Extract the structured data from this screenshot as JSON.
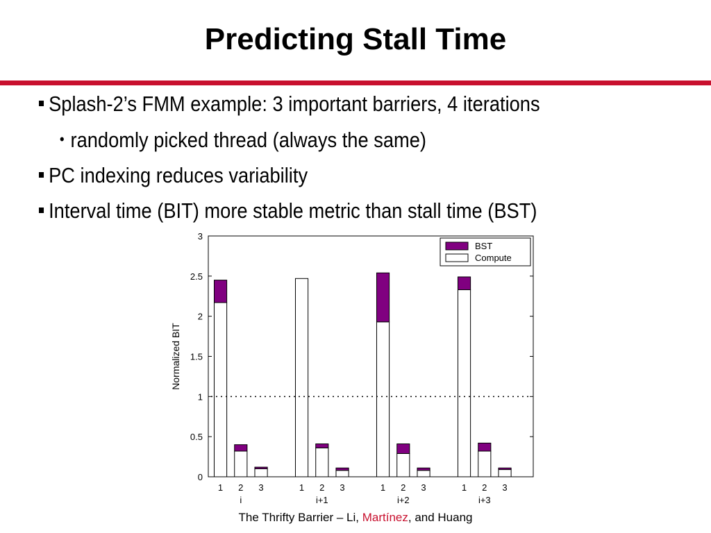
{
  "slide": {
    "title": "Predicting Stall Time",
    "accent_color": "#c8102e",
    "bullets": [
      {
        "level": 1,
        "text": "Splash-2’s FMM example: 3 important barriers, 4 iterations"
      },
      {
        "level": 2,
        "text": "randomly picked thread (always the same)"
      },
      {
        "level": 1,
        "text": "PC indexing reduces variability"
      },
      {
        "level": 1,
        "text": "Interval time (BIT) more stable metric than stall time (BST)"
      }
    ],
    "footer": {
      "before": "The Thrifty Barrier – Li, ",
      "highlight": "Martínez",
      "after": ", and Huang"
    }
  },
  "chart_data": {
    "type": "bar",
    "stacked": true,
    "ylabel": "Normalized BIT",
    "ylim": [
      0,
      3
    ],
    "yticks": [
      "0",
      "0.5",
      "1",
      "1.5",
      "2",
      "2.5",
      "3"
    ],
    "groups": [
      "i",
      "i+1",
      "i+2",
      "i+3"
    ],
    "categories": [
      "1",
      "2",
      "3"
    ],
    "series": [
      {
        "name": "Compute",
        "color": "#ffffff",
        "values": [
          [
            2.17,
            0.32,
            0.1
          ],
          [
            2.47,
            0.36,
            0.08
          ],
          [
            1.93,
            0.29,
            0.08
          ],
          [
            2.33,
            0.32,
            0.09
          ]
        ]
      },
      {
        "name": "BST",
        "color": "#800080",
        "values": [
          [
            0.28,
            0.08,
            0.02
          ],
          [
            0.0,
            0.05,
            0.03
          ],
          [
            0.61,
            0.12,
            0.03
          ],
          [
            0.16,
            0.1,
            0.02
          ]
        ]
      }
    ],
    "reference_line": {
      "y": 1,
      "style": "dotted"
    },
    "legend": {
      "position": "top-right"
    },
    "grid": false
  }
}
